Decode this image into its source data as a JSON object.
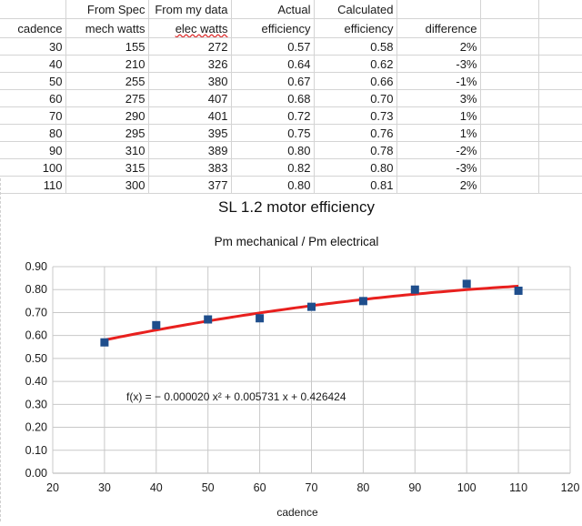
{
  "table": {
    "header_top": [
      "",
      "From Spec",
      "From my data",
      "Actual",
      "Calculated",
      "",
      "",
      ""
    ],
    "header_bottom": [
      "cadence",
      "mech watts",
      "elec watts",
      "efficiency",
      "efficiency",
      "difference",
      "",
      ""
    ],
    "rows": [
      [
        "30",
        "155",
        "272",
        "0.57",
        "0.58",
        "2%"
      ],
      [
        "40",
        "210",
        "326",
        "0.64",
        "0.62",
        "-3%"
      ],
      [
        "50",
        "255",
        "380",
        "0.67",
        "0.66",
        "-1%"
      ],
      [
        "60",
        "275",
        "407",
        "0.68",
        "0.70",
        "3%"
      ],
      [
        "70",
        "290",
        "401",
        "0.72",
        "0.73",
        "1%"
      ],
      [
        "80",
        "295",
        "395",
        "0.75",
        "0.76",
        "1%"
      ],
      [
        "90",
        "310",
        "389",
        "0.80",
        "0.78",
        "-2%"
      ],
      [
        "100",
        "315",
        "383",
        "0.82",
        "0.80",
        "-3%"
      ],
      [
        "110",
        "300",
        "377",
        "0.80",
        "0.81",
        "2%"
      ]
    ]
  },
  "chart_data": {
    "type": "scatter",
    "title": "SL 1.2 motor efficiency",
    "subtitle": "Pm mechanical / Pm electrical",
    "xlabel": "cadence",
    "ylabel": "",
    "xlim": [
      20,
      120
    ],
    "ylim": [
      0.0,
      0.9
    ],
    "xticks": [
      20,
      30,
      40,
      50,
      60,
      70,
      80,
      90,
      100,
      110,
      120
    ],
    "yticks": [
      0.0,
      0.1,
      0.2,
      0.3,
      0.4,
      0.5,
      0.6,
      0.7,
      0.8,
      0.9
    ],
    "xtick_labels": [
      "20",
      "30",
      "40",
      "50",
      "60",
      "70",
      "80",
      "90",
      "100",
      "110",
      "120"
    ],
    "ytick_labels": [
      "0.00",
      "0.10",
      "0.20",
      "0.30",
      "0.40",
      "0.50",
      "0.60",
      "0.70",
      "0.80",
      "0.90"
    ],
    "grid": true,
    "x": [
      30,
      40,
      50,
      60,
      70,
      80,
      90,
      100,
      110
    ],
    "y": [
      0.57,
      0.645,
      0.67,
      0.675,
      0.725,
      0.75,
      0.8,
      0.825,
      0.795
    ],
    "marker_color": "#1f4e8c",
    "trendline": {
      "type": "polynomial",
      "coefficients": [
        -2e-05,
        0.005731,
        0.426424
      ],
      "color": "#e8201e",
      "equation_label": "f(x) = − 0.000020 x² + 0.005731 x + 0.426424"
    }
  }
}
